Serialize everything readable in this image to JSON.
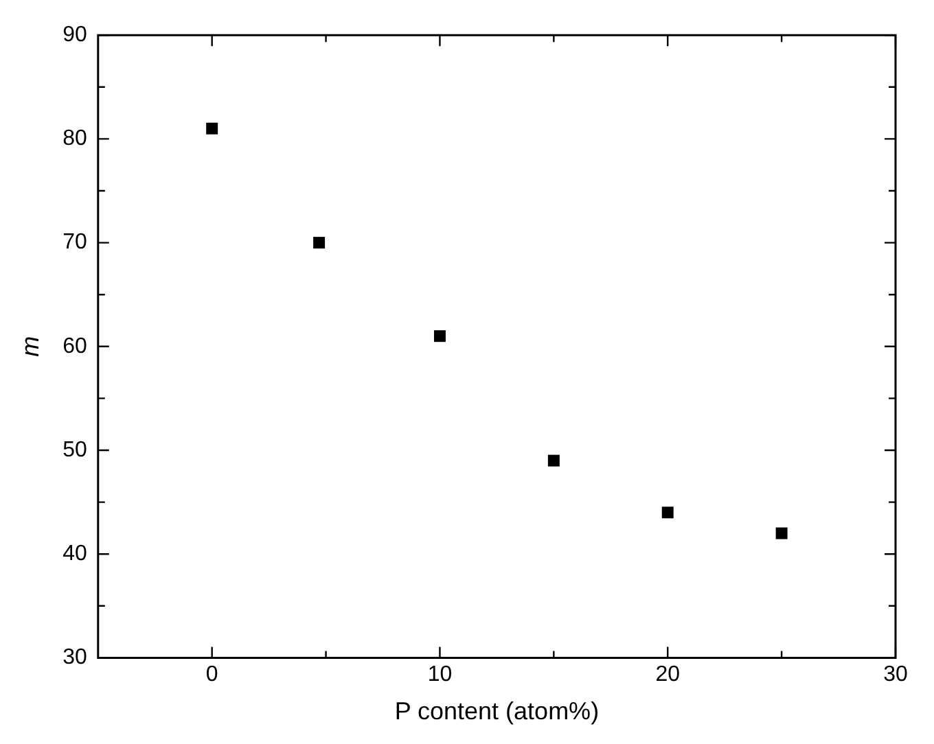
{
  "chart_data": {
    "type": "scatter",
    "xlabel": "P content (atom%)",
    "ylabel": "m",
    "x": [
      0,
      4.7,
      10,
      15,
      20,
      25
    ],
    "series": [
      {
        "color": "#000000",
        "values": [
          81,
          70,
          61,
          49,
          44,
          42
        ]
      }
    ],
    "marker": "square",
    "xlim": [
      -5,
      30
    ],
    "xticks": [
      0,
      {
        "value": 5,
        "label": null
      },
      10,
      {
        "value": 15,
        "label": null
      },
      20,
      {
        "value": 25,
        "label": null
      },
      30
    ],
    "ylim": [
      30,
      90
    ],
    "yticks": [
      30,
      {
        "value": 35,
        "label": null
      },
      40,
      {
        "value": 45,
        "label": null
      },
      50,
      {
        "value": 55,
        "label": null
      },
      60,
      {
        "value": 65,
        "label": null
      },
      70,
      {
        "value": 75,
        "label": null
      },
      80,
      {
        "value": 85,
        "label": null
      },
      90
    ],
    "legend": false
  }
}
